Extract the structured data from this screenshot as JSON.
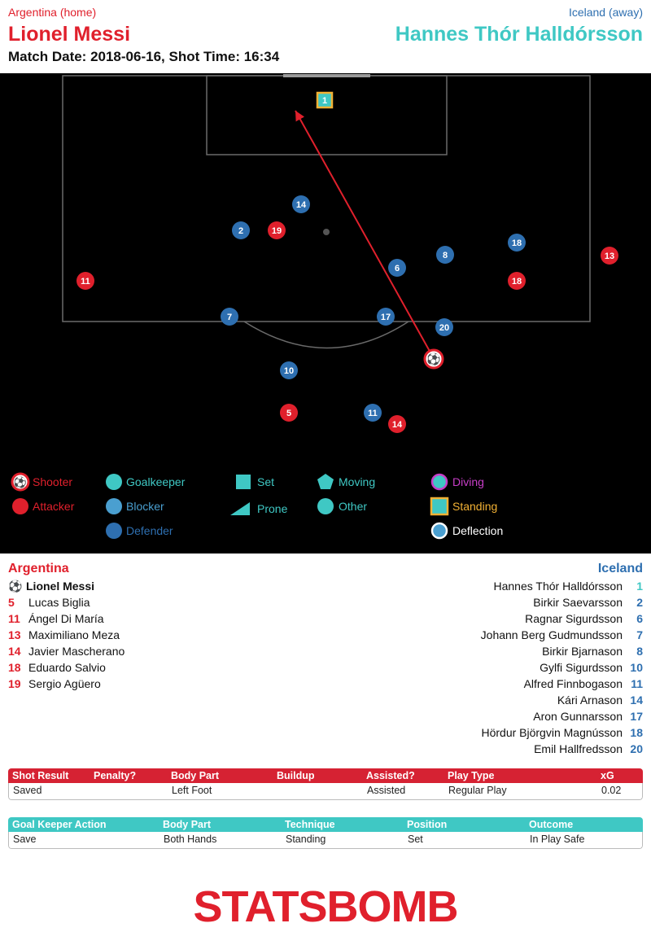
{
  "header": {
    "home_label": "Argentina (home)",
    "away_label": "Iceland (away)",
    "shooter_name": "Lionel Messi",
    "goalkeeper_name": "Hannes Thór Halldórsson",
    "match_line": "Match Date: 2018-06-16, Shot Time: 16:34"
  },
  "colors": {
    "home": "#e0202c",
    "goalkeeper": "#3fc8c4",
    "blocker": "#4a9fd0",
    "defender": "#2e6fb0",
    "pitch": "#000000",
    "standing_ring": "#f2b134",
    "diving_ring": "#c83ec8"
  },
  "pitch": {
    "markers": [
      {
        "number": "1",
        "type": "goalkeeper"
      },
      {
        "number": "14",
        "type": "defender"
      },
      {
        "number": "2",
        "type": "defender"
      },
      {
        "number": "19",
        "type": "attacker"
      },
      {
        "number": "18",
        "type": "defender"
      },
      {
        "number": "13",
        "type": "attacker"
      },
      {
        "number": "8",
        "type": "defender"
      },
      {
        "number": "6",
        "type": "defender"
      },
      {
        "number": "11",
        "type": "attacker"
      },
      {
        "number": "18",
        "type": "attacker"
      },
      {
        "number": "7",
        "type": "defender"
      },
      {
        "number": "17",
        "type": "defender"
      },
      {
        "number": "20",
        "type": "defender"
      },
      {
        "number": "10",
        "type": "defender"
      },
      {
        "number": "5",
        "type": "attacker"
      },
      {
        "number": "11",
        "type": "defender"
      },
      {
        "number": "14",
        "type": "attacker"
      }
    ]
  },
  "legend": {
    "shooter": "Shooter",
    "attacker": "Attacker",
    "goalkeeper": "Goalkeeper",
    "blocker": "Blocker",
    "defender": "Defender",
    "set": "Set",
    "prone": "Prone",
    "moving": "Moving",
    "other": "Other",
    "diving": "Diving",
    "standing": "Standing",
    "deflection": "Deflection"
  },
  "home_team": {
    "name": "Argentina",
    "shooter": "Lionel Messi",
    "players": [
      {
        "number": "5",
        "name": "Lucas Biglia"
      },
      {
        "number": "11",
        "name": "Ángel Di María"
      },
      {
        "number": "13",
        "name": "Maximiliano Meza"
      },
      {
        "number": "14",
        "name": "Javier Mascherano"
      },
      {
        "number": "18",
        "name": "Eduardo Salvio"
      },
      {
        "number": "19",
        "name": "Sergio Agüero"
      }
    ]
  },
  "away_team": {
    "name": "Iceland",
    "players": [
      {
        "number": "1",
        "name": "Hannes Thór Halldórsson"
      },
      {
        "number": "2",
        "name": "Birkir Saevarsson"
      },
      {
        "number": "6",
        "name": "Ragnar Sigurdsson"
      },
      {
        "number": "7",
        "name": "Johann Berg Gudmundsson"
      },
      {
        "number": "8",
        "name": "Birkir Bjarnason"
      },
      {
        "number": "10",
        "name": "Gylfi Sigurdsson"
      },
      {
        "number": "11",
        "name": "Alfred Finnbogason"
      },
      {
        "number": "14",
        "name": "Kári Arnason"
      },
      {
        "number": "17",
        "name": "Aron Gunnarsson"
      },
      {
        "number": "18",
        "name": "Hördur Björgvin Magnússon"
      },
      {
        "number": "20",
        "name": "Emil Hallfredsson"
      }
    ]
  },
  "shot_table": {
    "headers": [
      "Shot Result",
      "Penalty?",
      "Body Part",
      "Buildup",
      "Assisted?",
      "Play Type",
      "xG"
    ],
    "values": [
      "Saved",
      "",
      "Left Foot",
      "",
      "Assisted",
      "Regular Play",
      "0.02"
    ]
  },
  "gk_table": {
    "headers": [
      "Goal Keeper Action",
      "Body Part",
      "Technique",
      "Position",
      "Outcome"
    ],
    "values": [
      "Save",
      "Both Hands",
      "Standing",
      "Set",
      "In Play Safe"
    ]
  },
  "logo": {
    "text": "STATSBOMB"
  }
}
